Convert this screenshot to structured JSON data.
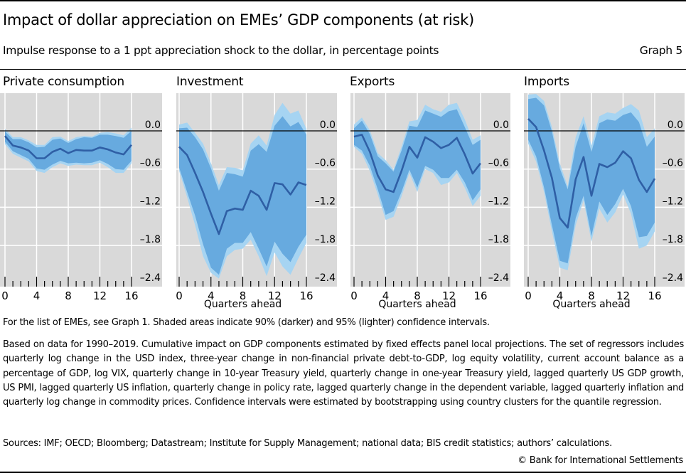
{
  "header": {
    "title": "Impact of dollar appreciation on EMEs’ GDP components (at risk)",
    "subtitle": "Impulse response to a 1 ppt appreciation shock to the dollar, in percentage points",
    "graph_number": "Graph 5"
  },
  "colors": {
    "panel_bg": "#d9d9d9",
    "grid": "#ffffff",
    "band95": "#a6d4f2",
    "band90": "#67aadf",
    "line": "#2f5fa5",
    "zero_line": "#000000"
  },
  "chart_data": [
    {
      "type": "area",
      "title": "Private consumption",
      "xlabel": "",
      "ylabel": "",
      "x": [
        0,
        1,
        2,
        3,
        4,
        5,
        6,
        7,
        8,
        9,
        10,
        11,
        12,
        13,
        14,
        15,
        16
      ],
      "xticks": [
        "0",
        "4",
        "8",
        "12",
        "16"
      ],
      "yticks": [
        "0.0",
        "–0.6",
        "–1.2",
        "–1.8",
        "–2.4"
      ],
      "ylim": [
        -2.4,
        0.6
      ],
      "series": [
        {
          "name": "Point estimate",
          "values": [
            -0.08,
            -0.23,
            -0.26,
            -0.31,
            -0.43,
            -0.43,
            -0.33,
            -0.28,
            -0.35,
            -0.3,
            -0.31,
            -0.31,
            -0.26,
            -0.29,
            -0.34,
            -0.37,
            -0.22
          ]
        },
        {
          "name": "90% upper",
          "values": [
            -0.01,
            -0.13,
            -0.13,
            -0.18,
            -0.26,
            -0.25,
            -0.14,
            -0.12,
            -0.19,
            -0.13,
            -0.1,
            -0.11,
            -0.06,
            -0.06,
            -0.08,
            -0.11,
            0.0
          ]
        },
        {
          "name": "90% lower",
          "values": [
            -0.17,
            -0.32,
            -0.38,
            -0.44,
            -0.59,
            -0.61,
            -0.53,
            -0.47,
            -0.51,
            -0.5,
            -0.51,
            -0.5,
            -0.46,
            -0.52,
            -0.6,
            -0.61,
            -0.47
          ]
        },
        {
          "name": "95% upper",
          "values": [
            0.03,
            -0.1,
            -0.1,
            -0.15,
            -0.22,
            -0.22,
            -0.1,
            -0.09,
            -0.16,
            -0.1,
            -0.08,
            -0.09,
            -0.03,
            -0.02,
            -0.04,
            -0.07,
            0.05
          ]
        },
        {
          "name": "95% lower",
          "values": [
            -0.21,
            -0.36,
            -0.42,
            -0.48,
            -0.63,
            -0.66,
            -0.57,
            -0.51,
            -0.55,
            -0.53,
            -0.54,
            -0.54,
            -0.5,
            -0.57,
            -0.66,
            -0.66,
            -0.51
          ]
        }
      ]
    },
    {
      "type": "area",
      "title": "Investment",
      "xlabel": "Quarters ahead",
      "ylabel": "",
      "x": [
        0,
        1,
        2,
        3,
        4,
        5,
        6,
        7,
        8,
        9,
        10,
        11,
        12,
        13,
        14,
        15,
        16
      ],
      "xticks": [
        "0",
        "4",
        "8",
        "12",
        "16"
      ],
      "yticks": [
        "0.0",
        "–0.6",
        "–1.2",
        "–1.8",
        "–2.4"
      ],
      "ylim": [
        -2.4,
        0.6
      ],
      "series": [
        {
          "name": "Point estimate",
          "values": [
            -0.25,
            -0.38,
            -0.66,
            -0.96,
            -1.3,
            -1.62,
            -1.26,
            -1.22,
            -1.24,
            -0.94,
            -1.02,
            -1.24,
            -0.82,
            -0.84,
            -1.0,
            -0.81,
            -0.85
          ]
        },
        {
          "name": "90% upper",
          "values": [
            0.04,
            0.05,
            -0.1,
            -0.29,
            -0.59,
            -0.94,
            -0.66,
            -0.68,
            -0.72,
            -0.31,
            -0.21,
            -0.33,
            0.08,
            0.23,
            0.07,
            0.14,
            -0.06
          ]
        },
        {
          "name": "90% lower",
          "values": [
            -0.58,
            -0.96,
            -1.33,
            -1.78,
            -2.15,
            -2.26,
            -1.85,
            -1.76,
            -1.76,
            -1.59,
            -1.85,
            -2.13,
            -1.74,
            -1.93,
            -2.06,
            -1.82,
            -1.63
          ]
        },
        {
          "name": "95% upper",
          "values": [
            0.1,
            0.13,
            -0.03,
            -0.2,
            -0.51,
            -0.85,
            -0.57,
            -0.58,
            -0.62,
            -0.2,
            -0.07,
            -0.23,
            0.25,
            0.44,
            0.27,
            0.32,
            0.03
          ]
        },
        {
          "name": "95% lower",
          "values": [
            -0.63,
            -1.04,
            -1.48,
            -1.97,
            -2.23,
            -2.32,
            -1.97,
            -1.87,
            -1.85,
            -1.71,
            -1.97,
            -2.28,
            -1.91,
            -2.13,
            -2.26,
            -2.0,
            -1.76
          ]
        }
      ]
    },
    {
      "type": "area",
      "title": "Exports",
      "xlabel": "Quarters ahead",
      "ylabel": "",
      "x": [
        0,
        1,
        2,
        3,
        4,
        5,
        6,
        7,
        8,
        9,
        10,
        11,
        12,
        13,
        14,
        15,
        16
      ],
      "xticks": [
        "0",
        "4",
        "8",
        "12",
        "16"
      ],
      "yticks": [
        "0.0",
        "–0.6",
        "–1.2",
        "–1.8",
        "–2.4"
      ],
      "ylim": [
        -2.4,
        0.6
      ],
      "series": [
        {
          "name": "Point estimate",
          "values": [
            -0.09,
            -0.06,
            -0.33,
            -0.7,
            -0.92,
            -0.96,
            -0.63,
            -0.25,
            -0.42,
            -0.1,
            -0.17,
            -0.27,
            -0.22,
            -0.11,
            -0.37,
            -0.67,
            -0.51
          ]
        },
        {
          "name": "90% upper",
          "values": [
            0.04,
            0.16,
            -0.05,
            -0.4,
            -0.51,
            -0.64,
            -0.31,
            0.08,
            0.06,
            0.32,
            0.27,
            0.22,
            0.31,
            0.34,
            0.06,
            -0.22,
            -0.14
          ]
        },
        {
          "name": "90% lower",
          "values": [
            -0.22,
            -0.31,
            -0.55,
            -0.92,
            -1.32,
            -1.26,
            -0.96,
            -0.61,
            -0.89,
            -0.55,
            -0.61,
            -0.74,
            -0.74,
            -0.61,
            -0.81,
            -1.09,
            -0.92
          ]
        },
        {
          "name": "95% upper",
          "values": [
            0.1,
            0.21,
            0.01,
            -0.35,
            -0.46,
            -0.61,
            -0.25,
            0.15,
            0.17,
            0.41,
            0.34,
            0.3,
            0.41,
            0.44,
            0.18,
            -0.14,
            -0.07
          ]
        },
        {
          "name": "95% lower",
          "values": [
            -0.25,
            -0.36,
            -0.63,
            -1.0,
            -1.4,
            -1.35,
            -1.03,
            -0.66,
            -0.96,
            -0.6,
            -0.66,
            -0.85,
            -0.81,
            -0.66,
            -0.89,
            -1.18,
            -1.02
          ]
        }
      ]
    },
    {
      "type": "area",
      "title": "Imports",
      "xlabel": "Quarters ahead",
      "ylabel": "",
      "x": [
        0,
        1,
        2,
        3,
        4,
        5,
        6,
        7,
        8,
        9,
        10,
        11,
        12,
        13,
        14,
        15,
        16
      ],
      "xticks": [
        "0",
        "4",
        "8",
        "12",
        "16"
      ],
      "yticks": [
        "0.0",
        "–0.6",
        "–1.2",
        "–1.8",
        "–2.4"
      ],
      "ylim": [
        -2.4,
        0.6
      ],
      "series": [
        {
          "name": "Point estimate",
          "values": [
            0.19,
            0.06,
            -0.31,
            -0.74,
            -1.37,
            -1.52,
            -0.76,
            -0.41,
            -1.02,
            -0.52,
            -0.57,
            -0.5,
            -0.32,
            -0.43,
            -0.77,
            -0.96,
            -0.75
          ]
        },
        {
          "name": "90% upper",
          "values": [
            0.5,
            0.52,
            0.4,
            -0.01,
            -0.59,
            -0.92,
            -0.25,
            0.12,
            -0.33,
            0.12,
            0.18,
            0.16,
            0.25,
            0.29,
            0.14,
            -0.25,
            -0.09
          ]
        },
        {
          "name": "90% lower",
          "values": [
            -0.14,
            -0.4,
            -0.89,
            -1.48,
            -2.04,
            -2.08,
            -1.37,
            -1.02,
            -1.65,
            -1.11,
            -1.32,
            -1.15,
            -0.91,
            -1.18,
            -1.67,
            -1.65,
            -1.44
          ]
        },
        {
          "name": "95% upper",
          "values": [
            0.57,
            0.58,
            0.47,
            0.06,
            -0.51,
            -0.87,
            -0.1,
            0.23,
            -0.23,
            0.23,
            0.29,
            0.27,
            0.36,
            0.42,
            0.32,
            -0.1,
            0.04
          ]
        },
        {
          "name": "95% lower",
          "values": [
            -0.2,
            -0.48,
            -0.96,
            -1.58,
            -2.15,
            -2.19,
            -1.48,
            -1.09,
            -1.74,
            -1.22,
            -1.44,
            -1.28,
            -1.0,
            -1.3,
            -1.85,
            -1.8,
            -1.58
          ]
        }
      ]
    }
  ],
  "notes": {
    "line1": "For the list of EMEs, see Graph 1. Shaded areas indicate 90% (darker) and 95% (lighter) confidence intervals.",
    "paragraph": "Based on data for 1990–2019. Cumulative impact on GDP components estimated by fixed effects panel local projections. The set of regressors includes quarterly log change in the USD index, three-year change in non-financial private debt-to-GDP, log equity volatility, current account balance as a percentage of GDP, log VIX, quarterly change in 10-year Treasury yield, quarterly change in one-year Treasury yield, lagged quarterly US GDP growth, US PMI, lagged quarterly US inflation, quarterly change in policy rate, lagged quarterly change in the dependent variable, lagged quarterly inflation and quarterly log change in commodity prices. Confidence intervals were estimated by bootstrapping using country clusters for the quantile regression.",
    "sources": "Sources: IMF; OECD; Bloomberg; Datastream; Institute for Supply Management; national data; BIS credit statistics; authors’ calculations.",
    "copyright": "© Bank for International Settlements"
  }
}
